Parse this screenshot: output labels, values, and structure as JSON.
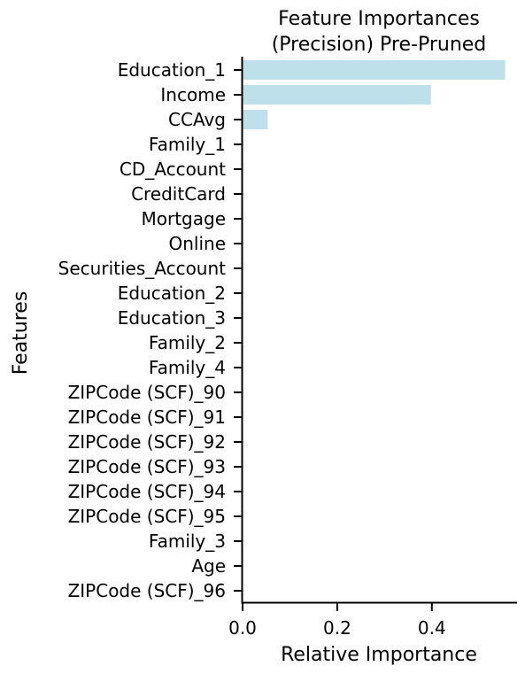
{
  "chart_data": {
    "type": "bar",
    "orientation": "horizontal",
    "title_lines": [
      "Feature Importances",
      "(Precision) Pre-Pruned"
    ],
    "xlabel": "Relative Importance",
    "ylabel": "Features",
    "bar_color": "#add8e6",
    "xlim": [
      0,
      0.58
    ],
    "xticks": [
      0.0,
      0.2,
      0.4
    ],
    "xtick_labels": [
      "0.0",
      "0.2",
      "0.4"
    ],
    "grid": false,
    "categories": [
      "Education_1",
      "Income",
      "CCAvg",
      "Family_1",
      "CD_Account",
      "CreditCard",
      "Mortgage",
      "Online",
      "Securities_Account",
      "Education_2",
      "Education_3",
      "Family_2",
      "Family_4",
      "ZIPCode (SCF)_90",
      "ZIPCode (SCF)_91",
      "ZIPCode (SCF)_92",
      "ZIPCode (SCF)_93",
      "ZIPCode (SCF)_94",
      "ZIPCode (SCF)_95",
      "Family_3",
      "Age",
      "ZIPCode (SCF)_96"
    ],
    "values": [
      0.555,
      0.398,
      0.053,
      0,
      0,
      0,
      0,
      0,
      0,
      0,
      0,
      0,
      0,
      0,
      0,
      0,
      0,
      0,
      0,
      0,
      0,
      0
    ]
  }
}
